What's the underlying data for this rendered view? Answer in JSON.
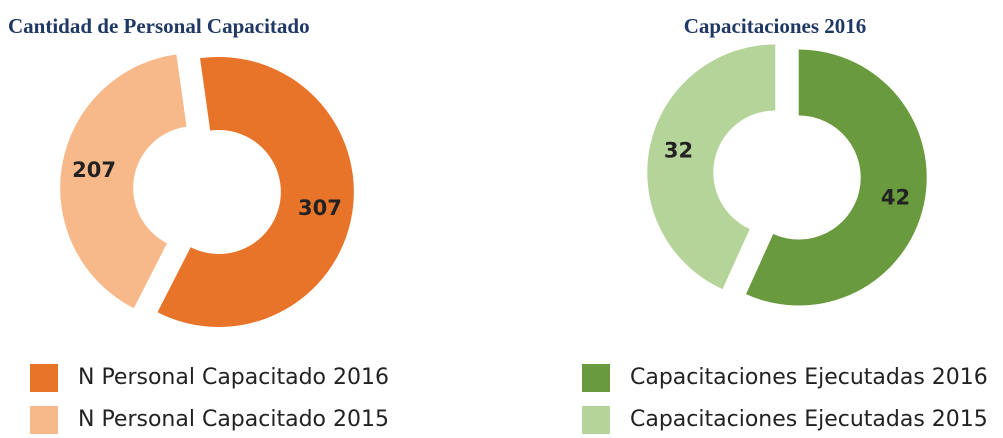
{
  "chart_data": [
    {
      "type": "pie",
      "donut": true,
      "title": "Cantidad de Personal Capacitado",
      "categories": [
        "N Personal Capacitado 2016",
        "N Personal Capacitado 2015"
      ],
      "values": [
        307,
        207
      ],
      "colors": [
        "#e8742a",
        "#f8b98a"
      ]
    },
    {
      "type": "pie",
      "donut": true,
      "title": "Capacitaciones 2016",
      "categories": [
        "Capacitaciones Ejecutadas 2016",
        "Capacitaciones Ejecutadas 2015"
      ],
      "values": [
        42,
        32
      ],
      "colors": [
        "#6a9a3e",
        "#b5d49a"
      ]
    }
  ]
}
